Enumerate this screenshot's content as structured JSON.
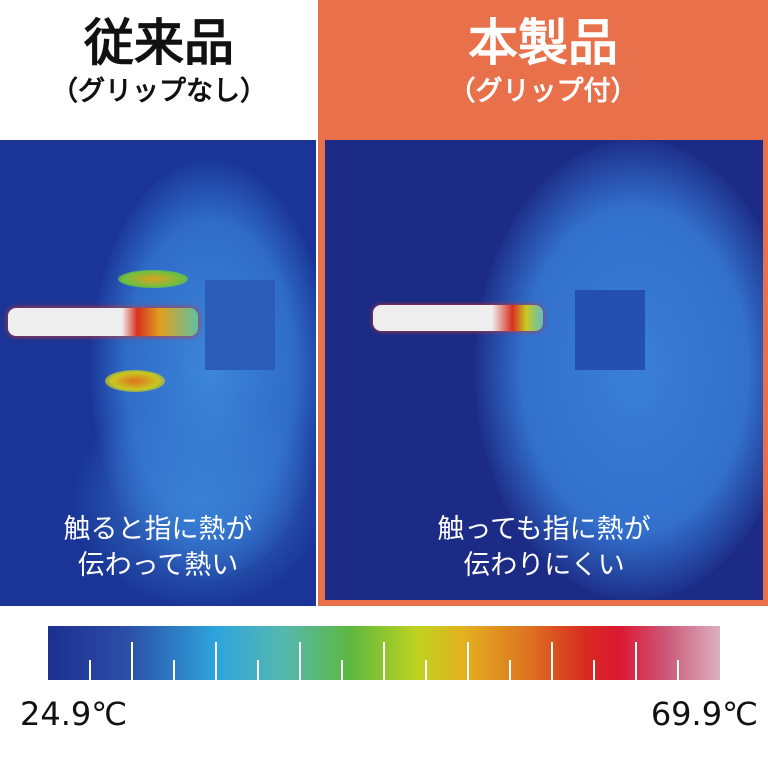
{
  "left": {
    "title": "従来品",
    "subtitle": "（グリップなし）",
    "caption_line1": "触ると指に熱が",
    "caption_line2": "伝わって熱い"
  },
  "right": {
    "title": "本製品",
    "subtitle": "（グリップ付）",
    "caption_line1": "触っても指に熱が",
    "caption_line2": "伝わりにくい"
  },
  "scale": {
    "min_label": "24.9℃",
    "max_label": "69.9℃"
  },
  "colors": {
    "accent": "#e8704a"
  }
}
